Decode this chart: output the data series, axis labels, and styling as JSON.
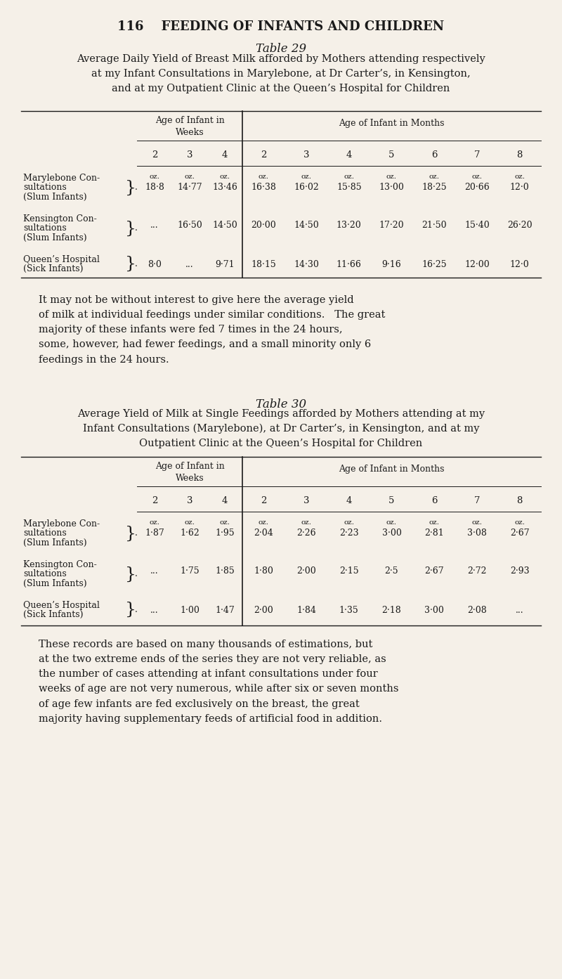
{
  "bg_color": "#f5f0e8",
  "text_color": "#1a1a1a",
  "page_header": "116    FEEDING OF INFANTS AND CHILDREN",
  "table29_title": "Table 29",
  "table29_subtitle": "Average Daily Yield of Breast Milk afforded by Mothers attending respectively\nat my Infant Consultations in Marylebone, at Dr Carter’s, in Kensington,\nand at my Outpatient Clinic at the Queen’s Hospital for Children",
  "col_header_weeks": "Age of Infant in\nWeeks",
  "col_header_months": "Age of Infant in Months",
  "col_nums": [
    "2",
    "3",
    "4",
    "2",
    "3",
    "4",
    "5",
    "6",
    "7",
    "8"
  ],
  "table29_rows": [
    {
      "label_lines": [
        "Marylebone Con-",
        "sultations",
        "(Slum Infants)"
      ],
      "label_suffix": "}.",
      "oz_label": "oz.",
      "values": [
        "18·8",
        "14·77",
        "13·46",
        "16·38",
        "16·02",
        "15·85",
        "13·00",
        "18·25",
        "20·66",
        "12·0"
      ]
    },
    {
      "label_lines": [
        "Kensington Con-",
        "sultations",
        "(Slum Infants)"
      ],
      "label_suffix": "}.",
      "oz_label": "",
      "values": [
        "...",
        "16·50",
        "14·50",
        "20·00",
        "14·50",
        "13·20",
        "17·20",
        "21·50",
        "15·40",
        "26·20"
      ]
    },
    {
      "label_lines": [
        "Queen’s Hospital",
        "(Sick Infants)"
      ],
      "label_suffix": "}.",
      "oz_label": "",
      "values": [
        "8·0",
        "...",
        "9·71",
        "18·15",
        "14·30",
        "11·66",
        "9·16",
        "16·25",
        "12·00",
        "12·0"
      ]
    }
  ],
  "middle_text": "It may not be without interest to give here the average yield\nof milk at individual feedings under similar conditions.   The great\nmajority of these infants were fed 7 times in the 24 hours,\nsome, however, had fewer feedings, and a small minority only 6\nfeedings in the 24 hours.",
  "table30_title": "Table 30",
  "table30_subtitle": "Average Yield of Milk at Single Feedings afforded by Mothers attending at my\nInfant Consultations (Marylebone), at Dr Carter’s, in Kensington, and at my\nOutpatient Clinic at the Queen’s Hospital for Children",
  "table30_rows": [
    {
      "label_lines": [
        "Marylebone Con-",
        "sultations",
        "(Slum Infants)"
      ],
      "label_suffix": "}.",
      "oz_label": "oz.",
      "values": [
        "1·87",
        "1·62",
        "1·95",
        "2·04",
        "2·26",
        "2·23",
        "3·00",
        "2·81",
        "3·08",
        "2·67"
      ]
    },
    {
      "label_lines": [
        "Kensington Con-",
        "sultations",
        "(Slum Infants)"
      ],
      "label_suffix": "}.",
      "oz_label": "",
      "values": [
        "...",
        "1·75",
        "1·85",
        "1·80",
        "2·00",
        "2·15",
        "2·5",
        "2·67",
        "2·72",
        "2·93"
      ]
    },
    {
      "label_lines": [
        "Queen’s Hospital",
        "(Sick Infants)"
      ],
      "label_suffix": "}.",
      "oz_label": "",
      "values": [
        "...",
        "1·00",
        "1·47",
        "2·00",
        "1·84",
        "1·35",
        "2·18",
        "3·00",
        "2·08",
        "..."
      ]
    }
  ],
  "bottom_text": "These records are based on many thousands of estimations, but\nat the two extreme ends of the series they are not very reliable, as\nthe number of cases attending at infant consultations under four\nweeks of age are not very numerous, while after six or seven months\nof age few infants are fed exclusively on the breast, the great\nmajority having supplementary feeds of artificial food in addition."
}
